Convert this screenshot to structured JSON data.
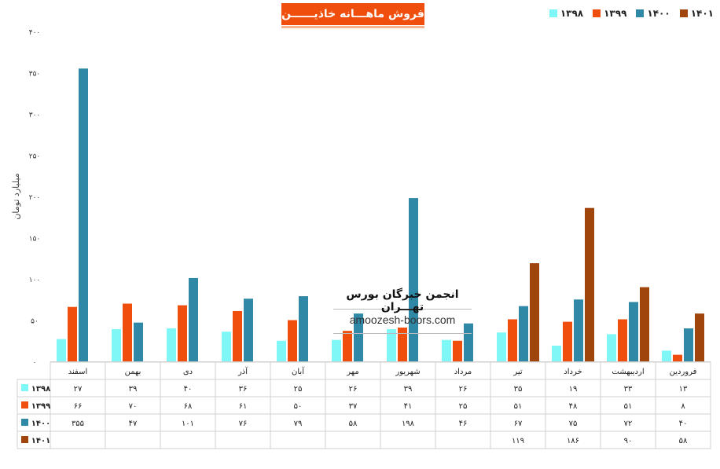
{
  "title": "فروش ماهـــانه خاذیــــــن",
  "colors": {
    "s1398": "#7ff7f7",
    "s1399": "#f04e0c",
    "s1400": "#2e88a6",
    "s1401": "#a0460c",
    "title_bg": "#f04e0c"
  },
  "legend": [
    "۱۳۹۸",
    "۱۳۹۹",
    "۱۴۰۰",
    "۱۴۰۱"
  ],
  "watermark": {
    "title": "انجمن خبرگان بورس تهـــران",
    "url": "amoozesh-boors.com"
  },
  "chart_data": {
    "type": "bar",
    "ylabel": "میلیارد تومان",
    "ylim": [
      0,
      400
    ],
    "yticks": [
      0,
      50,
      100,
      150,
      200,
      250,
      300,
      350,
      400
    ],
    "ytick_labels": [
      "۰",
      "۵۰",
      "۱۰۰",
      "۱۵۰",
      "۲۰۰",
      "۲۵۰",
      "۳۰۰",
      "۳۵۰",
      "۴۰۰"
    ],
    "categories": [
      "فروردین",
      "اردیبهشت",
      "خرداد",
      "تیر",
      "مرداد",
      "شهریور",
      "مهر",
      "آبان",
      "آذر",
      "دی",
      "بهمن",
      "اسفند"
    ],
    "series": [
      {
        "name": "۱۳۹۸",
        "color": "#7ff7f7",
        "values": [
          13,
          33,
          19,
          35,
          26,
          39,
          26,
          25,
          36,
          40,
          39,
          27
        ],
        "labels": [
          "۱۳",
          "۳۳",
          "۱۹",
          "۳۵",
          "۲۶",
          "۳۹",
          "۲۶",
          "۲۵",
          "۳۶",
          "۴۰",
          "۳۹",
          "۲۷"
        ]
      },
      {
        "name": "۱۳۹۹",
        "color": "#f04e0c",
        "values": [
          8,
          51,
          48,
          51,
          25,
          41,
          37,
          50,
          61,
          68,
          70,
          66
        ],
        "labels": [
          "۸",
          "۵۱",
          "۴۸",
          "۵۱",
          "۲۵",
          "۴۱",
          "۳۷",
          "۵۰",
          "۶۱",
          "۶۸",
          "۷۰",
          "۶۶"
        ]
      },
      {
        "name": "۱۴۰۰",
        "color": "#2e88a6",
        "values": [
          40,
          72,
          75,
          67,
          46,
          198,
          58,
          79,
          76,
          101,
          47,
          355
        ],
        "labels": [
          "۴۰",
          "۷۲",
          "۷۵",
          "۶۷",
          "۴۶",
          "۱۹۸",
          "۵۸",
          "۷۹",
          "۷۶",
          "۱۰۱",
          "۴۷",
          "۳۵۵"
        ]
      },
      {
        "name": "۱۴۰۱",
        "color": "#a0460c",
        "values": [
          58,
          90,
          186,
          119,
          null,
          null,
          null,
          null,
          null,
          null,
          null,
          null
        ],
        "labels": [
          "۵۸",
          "۹۰",
          "۱۸۶",
          "۱۱۹",
          "",
          "",
          "",
          "",
          "",
          "",
          "",
          ""
        ]
      }
    ]
  }
}
